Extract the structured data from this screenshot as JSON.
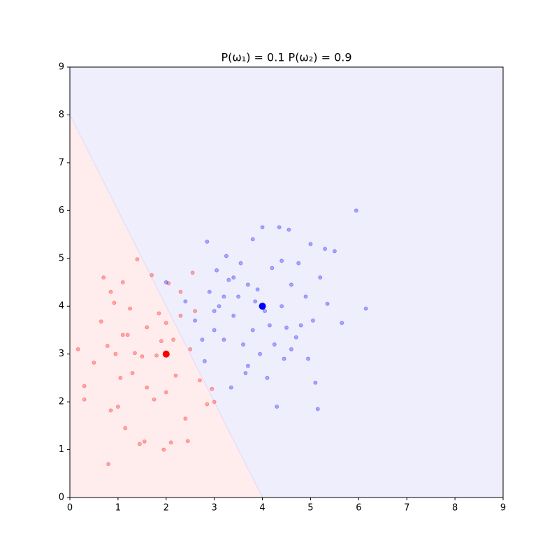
{
  "chart_data": {
    "type": "scatter",
    "title": "P(ω₁) = 0.1   P(ω₂) = 0.9",
    "xlim": [
      0,
      9
    ],
    "ylim": [
      0,
      9
    ],
    "xticks": [
      0,
      1,
      2,
      3,
      4,
      5,
      6,
      7,
      8,
      9
    ],
    "yticks": [
      0,
      1,
      2,
      3,
      4,
      5,
      6,
      7,
      8,
      9
    ],
    "grid": false,
    "regions": {
      "colors": [
        "#ffeded",
        "#eeeefc"
      ]
    },
    "boundary": {
      "x": [
        0,
        4
      ],
      "y": [
        8,
        0
      ],
      "color": "#e2d8f6"
    },
    "point_opacity": 0.3,
    "series": [
      {
        "color": "#ff0000",
        "x": [
          0.17,
          0.3,
          0.3,
          0.5,
          0.65,
          0.7,
          0.78,
          0.8,
          0.85,
          0.92,
          0.95,
          1.05,
          1.1,
          1.15,
          1.2,
          1.3,
          1.35,
          1.4,
          1.45,
          1.55,
          1.6,
          1.6,
          1.7,
          1.75,
          1.8,
          1.9,
          1.95,
          2.0,
          2.05,
          2.1,
          2.2,
          2.3,
          2.4,
          2.45,
          2.5,
          2.6,
          2.7,
          2.85,
          2.95,
          3.0,
          1.0,
          1.25,
          1.5,
          2.15,
          1.85,
          2.3,
          2.55,
          1.1,
          0.85,
          2.0
        ],
        "y": [
          3.1,
          2.33,
          2.05,
          2.82,
          3.68,
          4.6,
          3.17,
          0.7,
          1.82,
          4.07,
          3.0,
          2.5,
          4.5,
          1.45,
          3.4,
          2.6,
          3.02,
          4.98,
          1.12,
          1.17,
          2.3,
          3.56,
          4.65,
          2.05,
          2.97,
          3.27,
          1.0,
          3.65,
          4.48,
          1.15,
          2.55,
          3.8,
          1.65,
          1.18,
          3.1,
          3.9,
          2.45,
          1.95,
          2.27,
          2.0,
          1.9,
          3.95,
          2.95,
          3.3,
          3.85,
          4.3,
          4.7,
          3.4,
          4.3,
          2.2
        ]
      },
      {
        "color": "#0000ff",
        "x": [
          2.0,
          2.4,
          2.6,
          2.75,
          2.8,
          2.85,
          2.9,
          3.0,
          3.05,
          3.1,
          3.2,
          3.25,
          3.3,
          3.35,
          3.4,
          3.5,
          3.55,
          3.6,
          3.65,
          3.7,
          3.8,
          3.8,
          3.9,
          3.95,
          4.0,
          4.05,
          4.1,
          4.2,
          4.25,
          4.3,
          4.35,
          4.4,
          4.45,
          4.5,
          4.55,
          4.6,
          4.7,
          4.75,
          4.8,
          4.9,
          4.95,
          5.0,
          5.05,
          5.1,
          5.15,
          5.2,
          5.3,
          5.35,
          5.5,
          5.65,
          5.95,
          6.15,
          3.0,
          3.4,
          3.7,
          4.15,
          4.6,
          4.4,
          3.85,
          3.2
        ],
        "y": [
          4.5,
          4.1,
          3.7,
          3.3,
          2.85,
          5.35,
          4.3,
          3.9,
          4.75,
          4.0,
          3.3,
          5.05,
          4.55,
          2.3,
          3.8,
          4.2,
          4.9,
          3.2,
          2.6,
          4.45,
          3.5,
          5.4,
          4.35,
          3.0,
          5.65,
          3.9,
          2.5,
          4.8,
          3.2,
          1.9,
          5.65,
          4.0,
          2.9,
          3.55,
          5.6,
          4.45,
          3.35,
          4.9,
          3.6,
          4.2,
          2.9,
          5.3,
          3.7,
          2.4,
          1.85,
          4.6,
          5.2,
          4.05,
          5.15,
          3.65,
          6.0,
          3.95,
          3.5,
          4.6,
          2.75,
          3.6,
          3.1,
          4.95,
          4.1,
          4.2
        ]
      }
    ],
    "means": {
      "x": [
        2,
        4
      ],
      "y": [
        3,
        4
      ],
      "colors": [
        "#ff0000",
        "#0000ff"
      ]
    }
  }
}
